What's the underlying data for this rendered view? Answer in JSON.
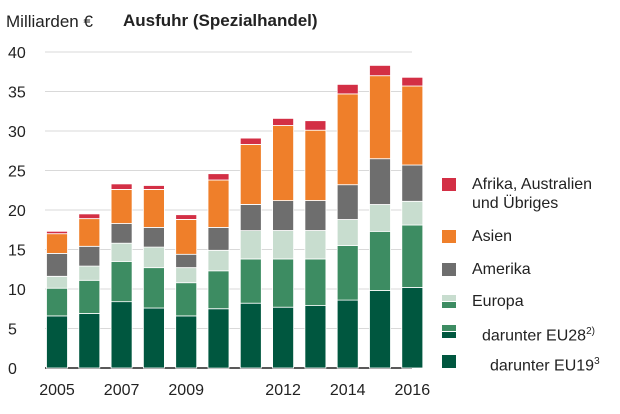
{
  "chart_data": {
    "type": "bar",
    "stacked": true,
    "title": "Ausfuhr (Spezialhandel)",
    "ylabel": "Milliarden €",
    "ylim": [
      0,
      40
    ],
    "yticks": [
      "0",
      "5",
      "10",
      "15",
      "20",
      "25",
      "30",
      "35",
      "40"
    ],
    "categories": [
      "2005",
      "2006",
      "2007",
      "2008",
      "2009",
      "2010",
      "2011",
      "2012",
      "2013",
      "2014",
      "2015",
      "2016"
    ],
    "xtick_labels": [
      "2005",
      "2007",
      "2009",
      "2012",
      "2014",
      "2016"
    ],
    "series": [
      {
        "name": "darunter EU19",
        "sup": "3",
        "color": "#00573f",
        "values": [
          6.6,
          6.9,
          8.4,
          7.6,
          6.6,
          7.5,
          8.2,
          7.7,
          7.9,
          8.6,
          9.8,
          10.2
        ]
      },
      {
        "name": "darunter EU28",
        "sup": "2)",
        "color": "#3d8c62",
        "values": [
          3.5,
          4.2,
          5.1,
          5.1,
          4.2,
          4.8,
          5.6,
          6.1,
          5.9,
          6.9,
          7.5,
          7.9
        ]
      },
      {
        "name": "Europa",
        "sup": "",
        "color": "#c8ddcf",
        "values": [
          1.5,
          1.8,
          2.3,
          2.6,
          1.9,
          2.6,
          3.6,
          3.6,
          3.6,
          3.3,
          3.4,
          3.0
        ]
      },
      {
        "name": "Amerika",
        "sup": "",
        "color": "#6e6e6e",
        "values": [
          2.9,
          2.5,
          2.5,
          2.5,
          1.7,
          2.9,
          3.3,
          3.8,
          3.8,
          4.4,
          5.8,
          4.6
        ]
      },
      {
        "name": "Asien",
        "sup": "",
        "color": "#ef7f2a",
        "values": [
          2.5,
          3.5,
          4.3,
          4.8,
          4.4,
          6.0,
          7.6,
          9.5,
          8.9,
          11.5,
          10.5,
          10.0
        ]
      },
      {
        "name": "Afrika, Australien und Übriges",
        "sup": "",
        "color": "#d32f45",
        "values": [
          0.3,
          0.6,
          0.7,
          0.5,
          0.6,
          0.8,
          0.8,
          0.9,
          1.2,
          1.2,
          1.3,
          1.1
        ]
      }
    ]
  },
  "legend": {
    "africa_line1": "Afrika, Australien",
    "africa_line2": "und Übriges",
    "asien": "Asien",
    "amerika": "Amerika",
    "europa": "Europa",
    "eu28": "darunter EU28",
    "eu28_sup": "2)",
    "eu19": "darunter EU19",
    "eu19_sup": "3"
  },
  "colors": {
    "axis": "#222222",
    "grid": "#d9d9d9"
  }
}
